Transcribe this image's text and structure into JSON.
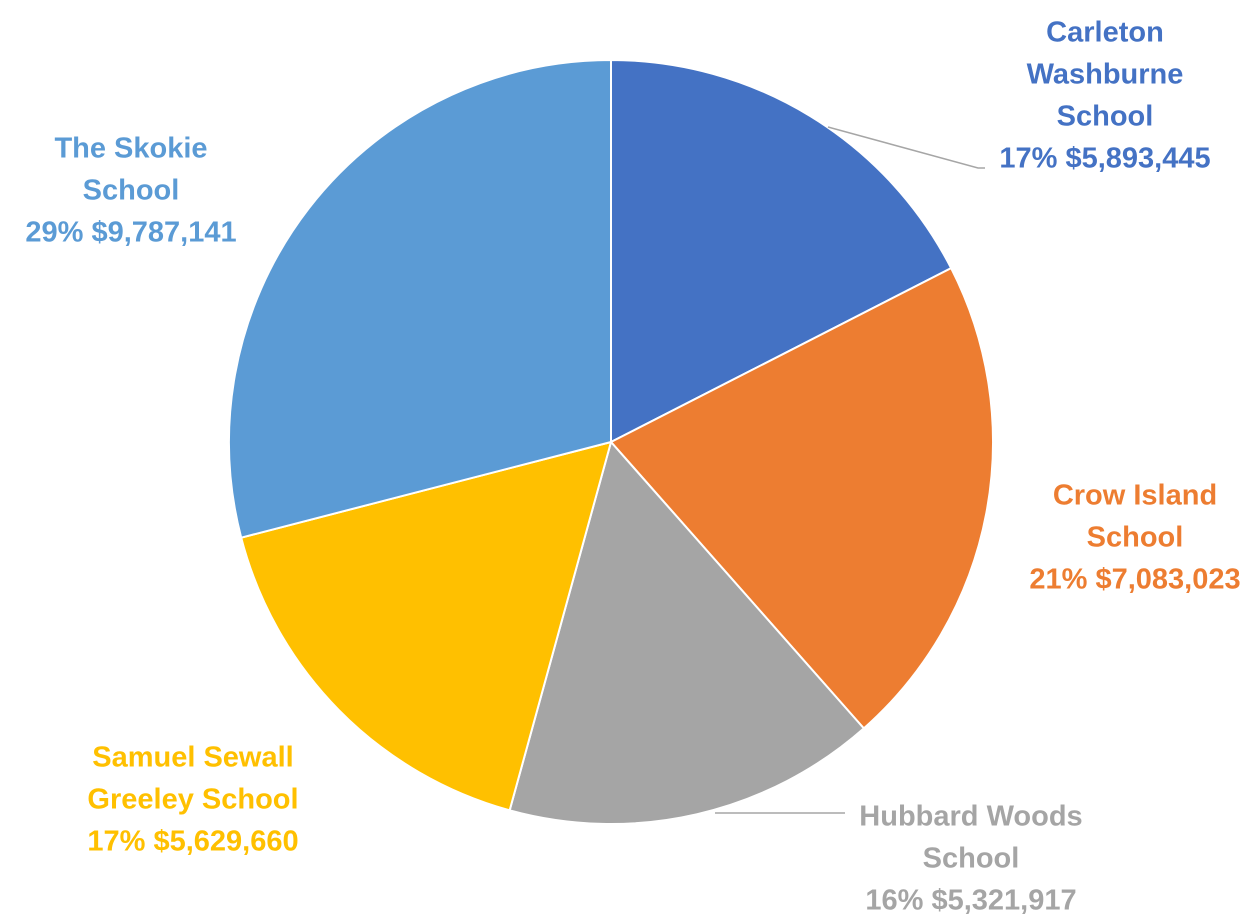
{
  "chart_data": {
    "type": "pie",
    "title": "",
    "slices": [
      {
        "label_lines": [
          "Carleton",
          "Washburne",
          "School"
        ],
        "percent_label": "17%",
        "value_label": "$5,893,445",
        "value": 5893445,
        "color": "#4472C4"
      },
      {
        "label_lines": [
          "Crow Island",
          "School"
        ],
        "percent_label": "21%",
        "value_label": "$7,083,023",
        "value": 7083023,
        "color": "#ED7D31"
      },
      {
        "label_lines": [
          "Hubbard Woods",
          "School"
        ],
        "percent_label": "16%",
        "value_label": "$5,321,917",
        "value": 5321917,
        "color": "#A5A5A5"
      },
      {
        "label_lines": [
          "Samuel Sewall",
          "Greeley School"
        ],
        "percent_label": "17%",
        "value_label": "$5,629,660",
        "value": 5629660,
        "color": "#FFC000"
      },
      {
        "label_lines": [
          "The Skokie",
          "School"
        ],
        "percent_label": "29%",
        "value_label": "$9,787,141",
        "value": 9787141,
        "color": "#5B9BD5"
      }
    ],
    "start_angle": "12 o'clock",
    "direction": "clockwise",
    "legend": "none",
    "label_colors": [
      "#4472C4",
      "#ED7D31",
      "#A5A5A5",
      "#FFC000",
      "#5B9BD5"
    ]
  }
}
